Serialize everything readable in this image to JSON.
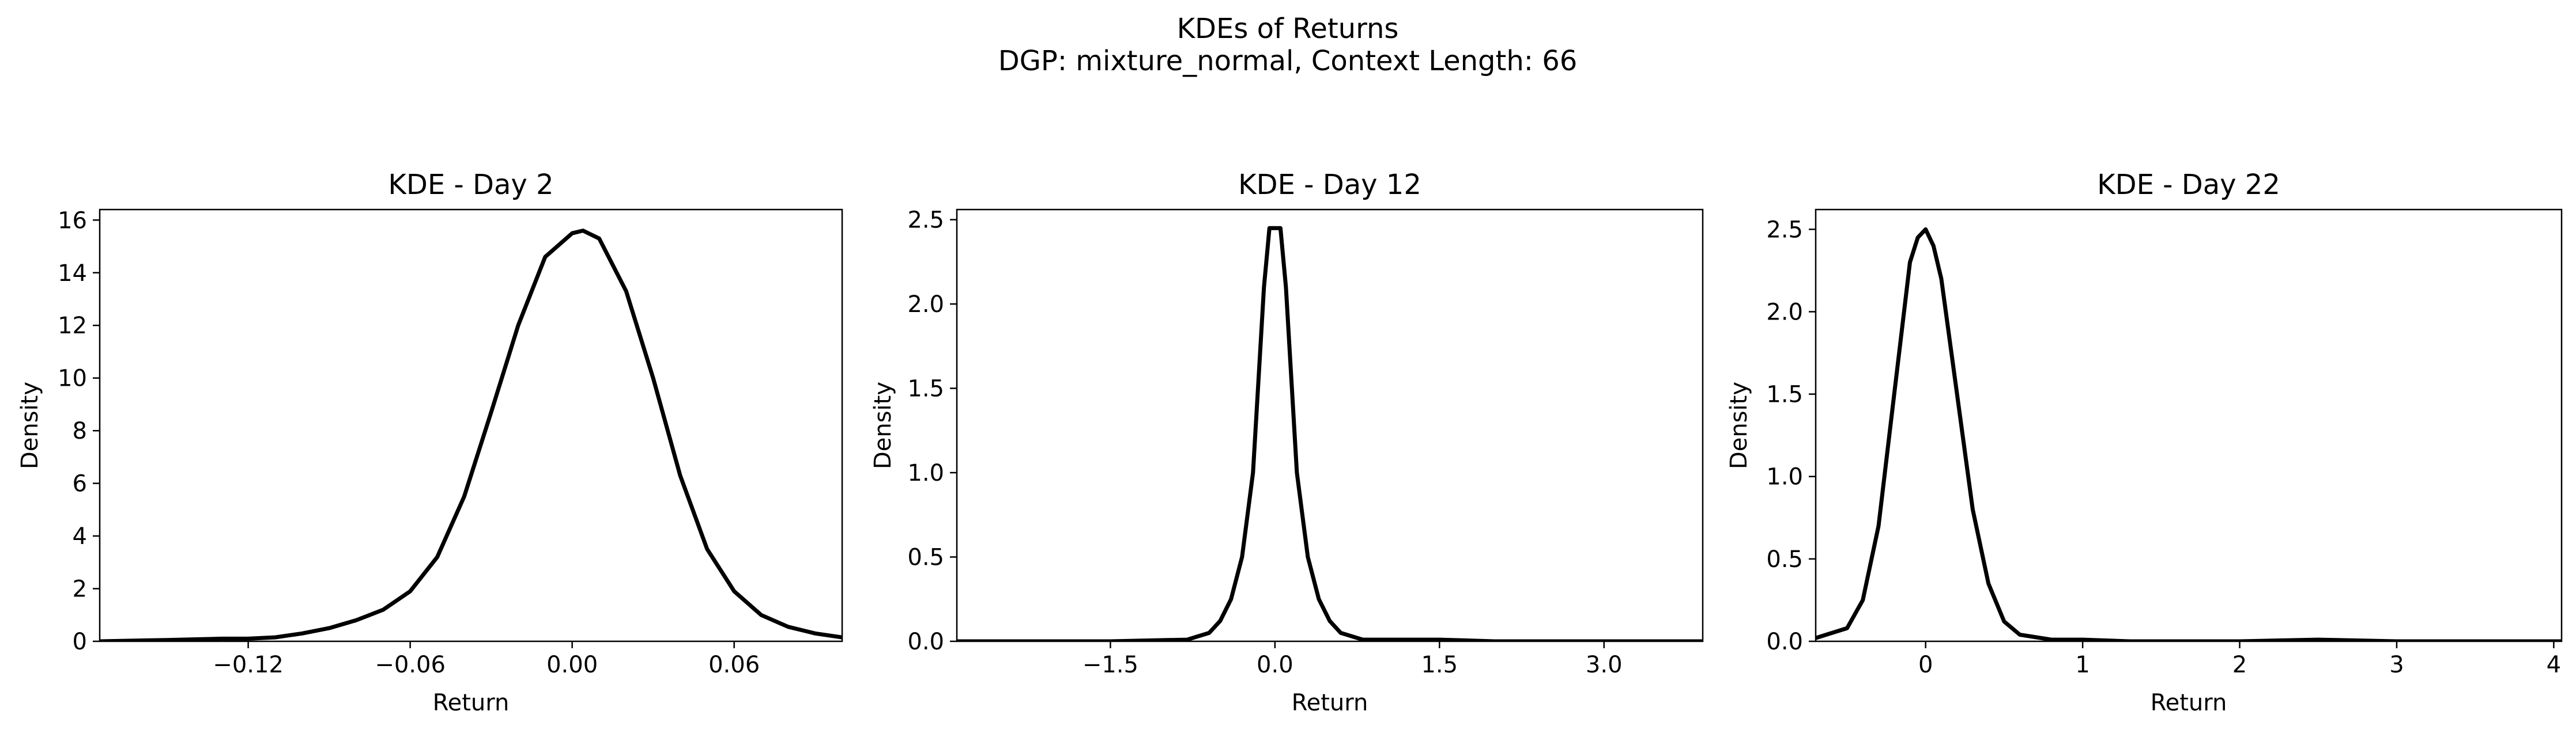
{
  "figure": {
    "title_line1": "KDEs of Returns",
    "title_line2": "DGP: mixture_normal, Context Length: 66"
  },
  "chart_data": [
    {
      "type": "line",
      "title": "KDE - Day 2",
      "xlabel": "Return",
      "ylabel": "Density",
      "xlim": [
        -0.175,
        0.1
      ],
      "ylim": [
        0,
        16.4
      ],
      "xticks": [
        -0.12,
        -0.06,
        0.0,
        0.06
      ],
      "xtick_labels": [
        "−0.12",
        "−0.06",
        "0.00",
        "0.06"
      ],
      "yticks": [
        0,
        2,
        4,
        6,
        8,
        10,
        12,
        14,
        16
      ],
      "ytick_labels": [
        "0",
        "2",
        "4",
        "6",
        "8",
        "10",
        "12",
        "14",
        "16"
      ],
      "line_color": "#000000",
      "series": [
        {
          "x": [
            -0.175,
            -0.15,
            -0.13,
            -0.12,
            -0.11,
            -0.1,
            -0.09,
            -0.08,
            -0.07,
            -0.06,
            -0.05,
            -0.04,
            -0.03,
            -0.02,
            -0.01,
            0.0,
            0.004,
            0.01,
            0.02,
            0.03,
            0.04,
            0.05,
            0.06,
            0.07,
            0.08,
            0.09,
            0.1
          ],
          "y": [
            0.0,
            0.05,
            0.1,
            0.1,
            0.15,
            0.3,
            0.5,
            0.8,
            1.2,
            1.9,
            3.2,
            5.5,
            8.7,
            12.0,
            14.6,
            15.5,
            15.6,
            15.3,
            13.3,
            10.0,
            6.3,
            3.5,
            1.9,
            1.0,
            0.55,
            0.3,
            0.15
          ]
        }
      ]
    },
    {
      "type": "line",
      "title": "KDE - Day 12",
      "xlabel": "Return",
      "ylabel": "Density",
      "xlim": [
        -2.9,
        3.9
      ],
      "ylim": [
        0,
        2.56
      ],
      "xticks": [
        -1.5,
        0.0,
        1.5,
        3.0
      ],
      "xtick_labels": [
        "−1.5",
        "0.0",
        "1.5",
        "3.0"
      ],
      "yticks": [
        0,
        0.5,
        1.0,
        1.5,
        2.0,
        2.5
      ],
      "ytick_labels": [
        "0.0",
        "0.5",
        "1.0",
        "1.5",
        "2.0",
        "2.5"
      ],
      "line_color": "#000000",
      "series": [
        {
          "x": [
            -2.9,
            -1.5,
            -0.8,
            -0.6,
            -0.5,
            -0.4,
            -0.3,
            -0.2,
            -0.1,
            -0.05,
            0.0,
            0.05,
            0.1,
            0.2,
            0.3,
            0.4,
            0.5,
            0.6,
            0.8,
            1.5,
            2.0,
            3.0,
            3.9
          ],
          "y": [
            0.0,
            0.0,
            0.01,
            0.05,
            0.12,
            0.25,
            0.5,
            1.0,
            2.1,
            2.45,
            2.45,
            2.45,
            2.1,
            1.0,
            0.5,
            0.25,
            0.12,
            0.05,
            0.01,
            0.01,
            0.0,
            0.0,
            0.0
          ]
        }
      ]
    },
    {
      "type": "line",
      "title": "KDE - Day 22",
      "xlabel": "Return",
      "ylabel": "Density",
      "xlim": [
        -0.7,
        4.05
      ],
      "ylim": [
        0,
        2.62
      ],
      "xticks": [
        0,
        1,
        2,
        3,
        4
      ],
      "xtick_labels": [
        "0",
        "1",
        "2",
        "3",
        "4"
      ],
      "yticks": [
        0,
        0.5,
        1.0,
        1.5,
        2.0,
        2.5
      ],
      "ytick_labels": [
        "0.0",
        "0.5",
        "1.0",
        "1.5",
        "2.0",
        "2.5"
      ],
      "line_color": "#000000",
      "series": [
        {
          "x": [
            -0.7,
            -0.5,
            -0.4,
            -0.3,
            -0.2,
            -0.1,
            -0.05,
            0.0,
            0.05,
            0.1,
            0.2,
            0.3,
            0.4,
            0.5,
            0.6,
            0.8,
            1.0,
            1.3,
            2.0,
            2.5,
            3.0,
            4.05
          ],
          "y": [
            0.02,
            0.08,
            0.25,
            0.7,
            1.5,
            2.3,
            2.45,
            2.5,
            2.4,
            2.2,
            1.5,
            0.8,
            0.35,
            0.12,
            0.04,
            0.01,
            0.01,
            0.0,
            0.0,
            0.01,
            0.0,
            0.0
          ]
        }
      ]
    }
  ]
}
